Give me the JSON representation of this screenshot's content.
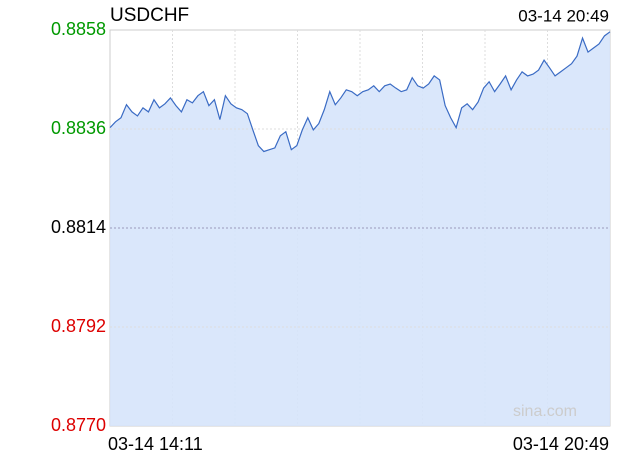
{
  "chart_data": {
    "type": "line",
    "title": "USDCHF",
    "timestamp": "03-14 20:49",
    "x_labels": [
      "03-14 14:11",
      "03-14 20:49"
    ],
    "watermark": "sina.com",
    "color": "#3a6bc4",
    "fill_color": "#d6e4fb",
    "grid": true,
    "reference_line": 0.8814,
    "up_color": "#009900",
    "down_color": "#dd0000",
    "flat_color": "#000000",
    "ylim": [
      0.877,
      0.8858
    ],
    "yticks": [
      {
        "value": 0.877,
        "label": "0.8770"
      },
      0.8792,
      0.8814,
      0.8836,
      0.8858
    ],
    "values": [
      0.88363,
      0.88376,
      0.88385,
      0.88414,
      0.88398,
      0.88389,
      0.88407,
      0.88398,
      0.88425,
      0.88407,
      0.88416,
      0.88429,
      0.88412,
      0.88398,
      0.88425,
      0.88418,
      0.88434,
      0.88443,
      0.88412,
      0.88425,
      0.88381,
      0.88434,
      0.88416,
      0.88407,
      0.88403,
      0.88394,
      0.88358,
      0.88323,
      0.8831,
      0.88314,
      0.88318,
      0.88345,
      0.88354,
      0.88314,
      0.88323,
      0.88358,
      0.88385,
      0.88358,
      0.88372,
      0.88403,
      0.88443,
      0.88414,
      0.88429,
      0.88447,
      0.88443,
      0.88434,
      0.88443,
      0.88447,
      0.88456,
      0.88443,
      0.88456,
      0.8846,
      0.88451,
      0.88443,
      0.88447,
      0.88474,
      0.88456,
      0.88451,
      0.8846,
      0.88478,
      0.88469,
      0.88412,
      0.88385,
      0.88363,
      0.88407,
      0.88416,
      0.88403,
      0.8842,
      0.88451,
      0.88465,
      0.88443,
      0.8846,
      0.88478,
      0.88447,
      0.88469,
      0.88487,
      0.88478,
      0.88482,
      0.88491,
      0.88513,
      0.88496,
      0.88478,
      0.88487,
      0.88496,
      0.88505,
      0.88522,
      0.88562,
      0.88531,
      0.8854,
      0.88549,
      0.88567,
      0.88576
    ]
  }
}
